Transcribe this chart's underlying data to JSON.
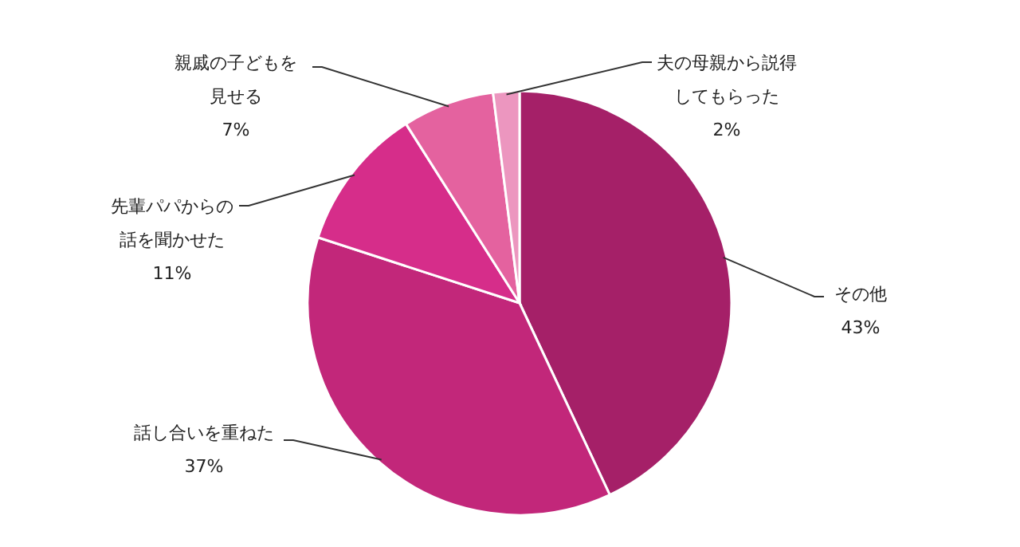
{
  "chart_data": {
    "type": "pie",
    "categories": [
      "その他",
      "話し合いを重ねた",
      "先輩パパからの話を聞かせた",
      "親戚の子どもを見せる",
      "夫の母親から説得してもらった"
    ],
    "values": [
      43,
      37,
      11,
      7,
      2
    ],
    "colors": [
      "#a52068",
      "#c2277a",
      "#d62d8a",
      "#e4629f",
      "#ec96bf"
    ],
    "value_labels": [
      "43%",
      "37%",
      "11%",
      "7%",
      "2%"
    ]
  }
}
